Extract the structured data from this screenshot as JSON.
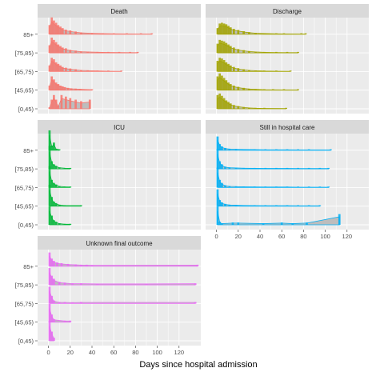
{
  "figure": {
    "xlabel": "Days since hospital admission"
  },
  "chart_data": {
    "type": "area",
    "layout": "faceted small multiples (ridgeline histograms), 3 rows x 2 columns, shared x axis",
    "xlabel": "Days since hospital admission",
    "ylabel": "",
    "x_ticks": [
      0,
      20,
      40,
      60,
      80,
      100,
      120
    ],
    "y_categories": [
      "[0,45)",
      "[45,65)",
      "[65,75)",
      "[75,85)",
      "85+"
    ],
    "grid": true,
    "legend": "none",
    "background": "#ebebeb",
    "strip_background": "#d9d9d9",
    "band_fill": "#bdbdbd",
    "facets": [
      {
        "title": "Death",
        "color": "#f8766d",
        "xlim": [
          -10,
          140
        ],
        "series": [
          {
            "age": "[0,45)",
            "x": [
              1,
              3,
              5,
              7,
              9,
              12,
              16,
              20,
              25,
              30,
              38
            ],
            "values": [
              0.1,
              0.6,
              0.9,
              0.6,
              0.2,
              0.9,
              0.8,
              0.7,
              0.6,
              0.5,
              0.6
            ]
          },
          {
            "age": "[45,65)",
            "x": [
              1,
              3,
              5,
              7,
              9,
              11,
              13,
              15,
              18,
              21,
              25,
              29,
              34,
              40
            ],
            "values": [
              0.3,
              0.9,
              0.7,
              0.5,
              0.4,
              0.3,
              0.25,
              0.2,
              0.15,
              0.12,
              0.1,
              0.08,
              0.06,
              0.04
            ]
          },
          {
            "age": "[65,75)",
            "x": [
              1,
              3,
              5,
              7,
              9,
              11,
              13,
              16,
              20,
              25,
              30,
              36,
              45,
              55,
              67
            ],
            "values": [
              0.4,
              0.9,
              0.8,
              0.6,
              0.5,
              0.4,
              0.3,
              0.25,
              0.2,
              0.15,
              0.1,
              0.08,
              0.05,
              0.03,
              0.02
            ]
          },
          {
            "age": "[75,85)",
            "x": [
              1,
              3,
              5,
              7,
              9,
              11,
              13,
              16,
              20,
              25,
              30,
              36,
              45,
              55,
              65,
              75,
              82
            ],
            "values": [
              0.5,
              1.0,
              0.85,
              0.7,
              0.55,
              0.45,
              0.35,
              0.3,
              0.2,
              0.15,
              0.1,
              0.08,
              0.06,
              0.04,
              0.03,
              0.02,
              0.02
            ]
          },
          {
            "age": "85+",
            "x": [
              1,
              3,
              5,
              7,
              9,
              11,
              13,
              16,
              20,
              25,
              30,
              40,
              50,
              60,
              72,
              85,
              95
            ],
            "values": [
              0.6,
              1.1,
              0.9,
              0.75,
              0.6,
              0.5,
              0.4,
              0.3,
              0.25,
              0.18,
              0.12,
              0.08,
              0.05,
              0.04,
              0.03,
              0.02,
              0.02
            ]
          }
        ]
      },
      {
        "title": "Discharge",
        "color": "#a3a500",
        "xlim": [
          -10,
          140
        ],
        "series": [
          {
            "age": "[0,45)",
            "x": [
              1,
              3,
              5,
              7,
              9,
              11,
              13,
              16,
              20,
              25,
              30,
              36,
              44,
              64
            ],
            "values": [
              0.9,
              1.0,
              0.85,
              0.7,
              0.55,
              0.45,
              0.35,
              0.25,
              0.18,
              0.12,
              0.08,
              0.05,
              0.03,
              0.02
            ]
          },
          {
            "age": "[45,65)",
            "x": [
              1,
              3,
              5,
              7,
              9,
              11,
              13,
              16,
              20,
              25,
              30,
              36,
              44,
              52,
              62,
              75
            ],
            "values": [
              0.9,
              1.1,
              0.95,
              0.8,
              0.65,
              0.5,
              0.4,
              0.3,
              0.22,
              0.15,
              0.1,
              0.07,
              0.04,
              0.03,
              0.02,
              0.02
            ]
          },
          {
            "age": "[65,75)",
            "x": [
              1,
              3,
              5,
              7,
              9,
              11,
              13,
              16,
              20,
              25,
              30,
              36,
              44,
              55,
              68
            ],
            "values": [
              0.7,
              0.9,
              0.85,
              0.75,
              0.6,
              0.5,
              0.4,
              0.3,
              0.22,
              0.15,
              0.1,
              0.07,
              0.04,
              0.03,
              0.02
            ]
          },
          {
            "age": "[75,85)",
            "x": [
              1,
              3,
              5,
              7,
              9,
              11,
              13,
              16,
              20,
              25,
              30,
              36,
              44,
              55,
              65,
              75
            ],
            "values": [
              0.6,
              0.85,
              0.8,
              0.75,
              0.65,
              0.55,
              0.45,
              0.35,
              0.25,
              0.18,
              0.12,
              0.08,
              0.05,
              0.03,
              0.02,
              0.02
            ]
          },
          {
            "age": "85+",
            "x": [
              1,
              3,
              5,
              7,
              9,
              11,
              13,
              16,
              20,
              25,
              30,
              36,
              44,
              55,
              62,
              78,
              82
            ],
            "values": [
              0.4,
              0.7,
              0.75,
              0.7,
              0.65,
              0.55,
              0.45,
              0.35,
              0.28,
              0.2,
              0.14,
              0.09,
              0.06,
              0.04,
              0.03,
              0.02,
              0.02
            ]
          }
        ]
      },
      {
        "title": "ICU",
        "color": "#00ba38",
        "xlim": [
          -10,
          140
        ],
        "series": [
          {
            "age": "[0,45)",
            "x": [
              1,
              3,
              5,
              7,
              10,
              15,
              20
            ],
            "values": [
              1.2,
              0.6,
              0.3,
              0.2,
              0.1,
              0.05,
              0.05
            ]
          },
          {
            "age": "[45,65)",
            "x": [
              1,
              3,
              5,
              7,
              10,
              15,
              30
            ],
            "values": [
              1.4,
              0.6,
              0.3,
              0.2,
              0.1,
              0.05,
              0.05
            ]
          },
          {
            "age": "[65,75)",
            "x": [
              1,
              3,
              5,
              7,
              10,
              15,
              20
            ],
            "values": [
              1.4,
              0.5,
              0.3,
              0.2,
              0.1,
              0.06,
              0.04
            ]
          },
          {
            "age": "[75,85)",
            "x": [
              1,
              3,
              5,
              7,
              10,
              15,
              20
            ],
            "values": [
              1.5,
              0.5,
              0.3,
              0.2,
              0.1,
              0.06,
              0.04
            ]
          },
          {
            "age": "85+",
            "x": [
              1,
              3,
              5,
              7,
              10
            ],
            "values": [
              1.3,
              0.3,
              0.5,
              0.1,
              0.05
            ]
          }
        ]
      },
      {
        "title": "Still in hospital care",
        "color": "#00b0f6",
        "xlim": [
          -10,
          140
        ],
        "series": [
          {
            "age": "[0,45)",
            "x": [
              1,
              3,
              5,
              15,
              20,
              43,
              60,
              70,
              83,
              113
            ],
            "values": [
              1.2,
              0.2,
              0.1,
              0.15,
              0.15,
              0.1,
              0.15,
              0.1,
              0.15,
              0.7
            ]
          },
          {
            "age": "[45,65)",
            "x": [
              1,
              3,
              5,
              8,
              12,
              18,
              25,
              35,
              45,
              55,
              65,
              75,
              85,
              95
            ],
            "values": [
              1.1,
              0.4,
              0.25,
              0.15,
              0.1,
              0.08,
              0.06,
              0.05,
              0.04,
              0.04,
              0.04,
              0.03,
              0.03,
              0.03
            ]
          },
          {
            "age": "[65,75)",
            "x": [
              1,
              3,
              5,
              8,
              12,
              18,
              25,
              35,
              45,
              55,
              65,
              75,
              85,
              95,
              103
            ],
            "values": [
              1.3,
              0.5,
              0.3,
              0.15,
              0.1,
              0.08,
              0.06,
              0.05,
              0.04,
              0.04,
              0.04,
              0.03,
              0.03,
              0.03,
              0.03
            ]
          },
          {
            "age": "[75,85)",
            "x": [
              1,
              3,
              5,
              8,
              12,
              18,
              25,
              35,
              45,
              55,
              65,
              75,
              85,
              95,
              103
            ],
            "values": [
              1.3,
              0.5,
              0.3,
              0.15,
              0.1,
              0.08,
              0.06,
              0.05,
              0.04,
              0.04,
              0.04,
              0.03,
              0.03,
              0.03,
              0.03
            ]
          },
          {
            "age": "85+",
            "x": [
              1,
              3,
              5,
              8,
              12,
              18,
              25,
              35,
              45,
              55,
              65,
              75,
              85,
              105
            ],
            "values": [
              0.9,
              0.4,
              0.25,
              0.15,
              0.1,
              0.08,
              0.06,
              0.05,
              0.04,
              0.04,
              0.04,
              0.03,
              0.03,
              0.03
            ]
          }
        ]
      },
      {
        "title": "Unknown final outcome",
        "color": "#e76bf3",
        "xlim": [
          -10,
          140
        ],
        "series": [
          {
            "age": "[0,45)",
            "x": [
              1,
              3,
              5
            ],
            "values": [
              1.3,
              0.6,
              0.2
            ]
          },
          {
            "age": "[45,65)",
            "x": [
              1,
              3,
              5,
              15,
              20
            ],
            "values": [
              1.2,
              0.5,
              0.2,
              0.1,
              0.1
            ]
          },
          {
            "age": "[65,75)",
            "x": [
              1,
              3,
              5,
              10,
              15,
              22,
              30,
              135
            ],
            "values": [
              1.1,
              0.5,
              0.2,
              0.1,
              0.1,
              0.08,
              0.1,
              0.1
            ]
          },
          {
            "age": "[75,85)",
            "x": [
              1,
              3,
              5,
              10,
              15,
              22,
              30,
              45,
              90,
              135
            ],
            "values": [
              1.1,
              0.6,
              0.4,
              0.2,
              0.15,
              0.1,
              0.1,
              0.08,
              0.08,
              0.1
            ]
          },
          {
            "age": "85+",
            "x": [
              1,
              3,
              5,
              8,
              12,
              18,
              25,
              30,
              35,
              40,
              137
            ],
            "values": [
              0.9,
              0.5,
              0.35,
              0.25,
              0.2,
              0.15,
              0.12,
              0.1,
              0.1,
              0.08,
              0.1
            ]
          }
        ]
      }
    ]
  }
}
